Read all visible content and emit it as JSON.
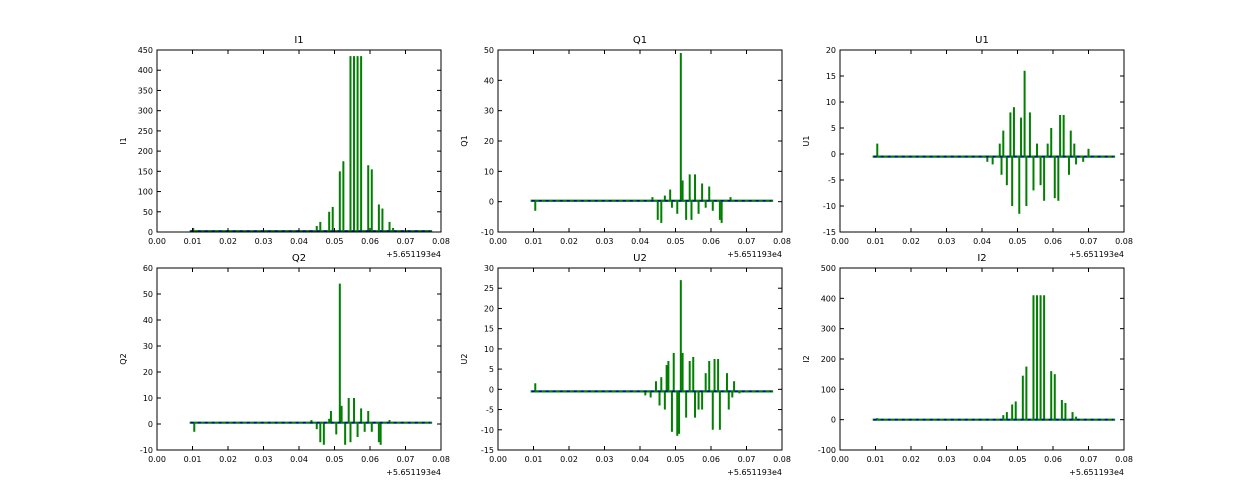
{
  "colors": {
    "green": "#007f00",
    "blue": "#0000cc",
    "axis": "#000000",
    "background": "#ffffff"
  },
  "chart_data": [
    {
      "type": "line",
      "title": "I1",
      "xlabel": "",
      "ylabel": "I1",
      "xlim": [
        0.0,
        0.08
      ],
      "ylim": [
        0,
        450
      ],
      "xticks": [
        "0.00",
        "0.01",
        "0.02",
        "0.03",
        "0.04",
        "0.05",
        "0.06",
        "0.07",
        "0.08"
      ],
      "yticks": [
        0,
        50,
        100,
        150,
        200,
        250,
        300,
        350,
        400,
        450
      ],
      "offset_label": "+5.651193e4",
      "grid": false,
      "baseline": 2,
      "spikes": [
        [
          0.0102,
          10
        ],
        [
          0.043,
          5
        ],
        [
          0.045,
          15
        ],
        [
          0.046,
          25
        ],
        [
          0.0485,
          50
        ],
        [
          0.0495,
          62
        ],
        [
          0.0515,
          150
        ],
        [
          0.0525,
          175
        ],
        [
          0.0545,
          435
        ],
        [
          0.0555,
          435
        ],
        [
          0.0565,
          435
        ],
        [
          0.0575,
          435
        ],
        [
          0.0595,
          165
        ],
        [
          0.0605,
          155
        ],
        [
          0.0625,
          68
        ],
        [
          0.0635,
          58
        ],
        [
          0.0655,
          25
        ],
        [
          0.0665,
          10
        ]
      ]
    },
    {
      "type": "line",
      "title": "Q1",
      "xlabel": "",
      "ylabel": "Q1",
      "xlim": [
        0.0,
        0.08
      ],
      "ylim": [
        -10,
        50
      ],
      "xticks": [
        "0.00",
        "0.01",
        "0.02",
        "0.03",
        "0.04",
        "0.05",
        "0.06",
        "0.07",
        "0.08"
      ],
      "yticks": [
        -10,
        0,
        10,
        20,
        30,
        40,
        50
      ],
      "offset_label": "+5.651193e4",
      "grid": false,
      "baseline": 0.3,
      "spikes": [
        [
          0.0105,
          -3
        ],
        [
          0.0435,
          1.5
        ],
        [
          0.045,
          -6
        ],
        [
          0.046,
          -7
        ],
        [
          0.047,
          2
        ],
        [
          0.0485,
          4
        ],
        [
          0.049,
          -2
        ],
        [
          0.0505,
          -4
        ],
        [
          0.0515,
          49
        ],
        [
          0.052,
          7
        ],
        [
          0.053,
          -6
        ],
        [
          0.054,
          9
        ],
        [
          0.0545,
          -6
        ],
        [
          0.0555,
          9
        ],
        [
          0.0565,
          -4
        ],
        [
          0.0575,
          6
        ],
        [
          0.0585,
          -2
        ],
        [
          0.0595,
          5
        ],
        [
          0.0605,
          -3
        ],
        [
          0.0625,
          -6
        ],
        [
          0.063,
          -7
        ],
        [
          0.0655,
          1.5
        ]
      ]
    },
    {
      "type": "line",
      "title": "U1",
      "xlabel": "",
      "ylabel": "U1",
      "xlim": [
        0.0,
        0.08
      ],
      "ylim": [
        -15,
        20
      ],
      "xticks": [
        "0.00",
        "0.01",
        "0.02",
        "0.03",
        "0.04",
        "0.05",
        "0.06",
        "0.07",
        "0.08"
      ],
      "yticks": [
        -15,
        -10,
        -5,
        0,
        5,
        10,
        15,
        20
      ],
      "offset_label": "+5.651193e4",
      "grid": false,
      "baseline": -0.5,
      "spikes": [
        [
          0.0105,
          2
        ],
        [
          0.0415,
          -1.5
        ],
        [
          0.043,
          -2
        ],
        [
          0.045,
          2
        ],
        [
          0.0455,
          -4
        ],
        [
          0.046,
          4.5
        ],
        [
          0.047,
          -6
        ],
        [
          0.048,
          8
        ],
        [
          0.0485,
          -10
        ],
        [
          0.049,
          9
        ],
        [
          0.0505,
          -11.5
        ],
        [
          0.051,
          7
        ],
        [
          0.052,
          16
        ],
        [
          0.0525,
          -10
        ],
        [
          0.0535,
          8
        ],
        [
          0.0545,
          -7
        ],
        [
          0.0555,
          2
        ],
        [
          0.0565,
          -6
        ],
        [
          0.0575,
          -9
        ],
        [
          0.0585,
          2
        ],
        [
          0.0595,
          5
        ],
        [
          0.0605,
          -8.5
        ],
        [
          0.0615,
          -9
        ],
        [
          0.062,
          7.5
        ],
        [
          0.063,
          7.5
        ],
        [
          0.0645,
          -4
        ],
        [
          0.065,
          4.5
        ],
        [
          0.066,
          2
        ],
        [
          0.0665,
          -2
        ],
        [
          0.0685,
          -1.5
        ],
        [
          0.07,
          1
        ]
      ]
    },
    {
      "type": "line",
      "title": "Q2",
      "xlabel": "",
      "ylabel": "Q2",
      "xlim": [
        0.0,
        0.08
      ],
      "ylim": [
        -10,
        60
      ],
      "xticks": [
        "0.00",
        "0.01",
        "0.02",
        "0.03",
        "0.04",
        "0.05",
        "0.06",
        "0.07",
        "0.08"
      ],
      "yticks": [
        -10,
        0,
        10,
        20,
        30,
        40,
        50,
        60
      ],
      "offset_label": "+5.651193e4",
      "grid": false,
      "baseline": 0.5,
      "spikes": [
        [
          0.0105,
          -3
        ],
        [
          0.0435,
          1.5
        ],
        [
          0.045,
          -2
        ],
        [
          0.046,
          -7
        ],
        [
          0.047,
          -8
        ],
        [
          0.0485,
          2
        ],
        [
          0.049,
          5
        ],
        [
          0.0505,
          -4
        ],
        [
          0.0515,
          54
        ],
        [
          0.052,
          7
        ],
        [
          0.053,
          -8
        ],
        [
          0.054,
          10
        ],
        [
          0.0545,
          -7
        ],
        [
          0.0555,
          10
        ],
        [
          0.0565,
          -5
        ],
        [
          0.0575,
          6
        ],
        [
          0.0585,
          -3
        ],
        [
          0.0595,
          5
        ],
        [
          0.0605,
          -3
        ],
        [
          0.0625,
          -7
        ],
        [
          0.063,
          -8
        ],
        [
          0.0655,
          1.5
        ]
      ]
    },
    {
      "type": "line",
      "title": "U2",
      "xlabel": "",
      "ylabel": "U2",
      "xlim": [
        0.0,
        0.08
      ],
      "ylim": [
        -15,
        30
      ],
      "xticks": [
        "0.00",
        "0.01",
        "0.02",
        "0.03",
        "0.04",
        "0.05",
        "0.06",
        "0.07",
        "0.08"
      ],
      "yticks": [
        -15,
        -10,
        -5,
        0,
        5,
        10,
        15,
        20,
        25,
        30
      ],
      "offset_label": "+5.651193e4",
      "grid": false,
      "baseline": -0.5,
      "spikes": [
        [
          0.0105,
          1.5
        ],
        [
          0.0415,
          -1.5
        ],
        [
          0.043,
          -2
        ],
        [
          0.0445,
          2
        ],
        [
          0.0455,
          -4
        ],
        [
          0.046,
          3
        ],
        [
          0.047,
          -5
        ],
        [
          0.0475,
          6
        ],
        [
          0.048,
          7
        ],
        [
          0.049,
          -10.5
        ],
        [
          0.0495,
          9
        ],
        [
          0.0505,
          -11.5
        ],
        [
          0.051,
          -11
        ],
        [
          0.0515,
          27
        ],
        [
          0.052,
          9
        ],
        [
          0.053,
          -7
        ],
        [
          0.054,
          7
        ],
        [
          0.055,
          8
        ],
        [
          0.0555,
          -7
        ],
        [
          0.0565,
          -5
        ],
        [
          0.0575,
          -5
        ],
        [
          0.0585,
          4
        ],
        [
          0.0595,
          7
        ],
        [
          0.0605,
          -10
        ],
        [
          0.061,
          7.5
        ],
        [
          0.062,
          7.5
        ],
        [
          0.0625,
          -10
        ],
        [
          0.0645,
          4
        ],
        [
          0.065,
          -5
        ],
        [
          0.066,
          -2
        ],
        [
          0.0665,
          2
        ],
        [
          0.068,
          -1
        ]
      ]
    },
    {
      "type": "line",
      "title": "I2",
      "xlabel": "",
      "ylabel": "I2",
      "xlim": [
        0.0,
        0.08
      ],
      "ylim": [
        -100,
        500
      ],
      "xticks": [
        "0.00",
        "0.01",
        "0.02",
        "0.03",
        "0.04",
        "0.05",
        "0.06",
        "0.07",
        "0.08"
      ],
      "yticks": [
        -100,
        0,
        100,
        200,
        300,
        400,
        500
      ],
      "offset_label": "+5.651193e4",
      "grid": false,
      "baseline": 0,
      "spikes": [
        [
          0.0105,
          5
        ],
        [
          0.046,
          15
        ],
        [
          0.047,
          25
        ],
        [
          0.0485,
          50
        ],
        [
          0.0495,
          60
        ],
        [
          0.0515,
          145
        ],
        [
          0.0525,
          175
        ],
        [
          0.0545,
          410
        ],
        [
          0.0555,
          410
        ],
        [
          0.0565,
          410
        ],
        [
          0.0575,
          410
        ],
        [
          0.0595,
          160
        ],
        [
          0.0605,
          150
        ],
        [
          0.0625,
          65
        ],
        [
          0.0635,
          55
        ],
        [
          0.0655,
          25
        ],
        [
          0.0665,
          10
        ]
      ]
    }
  ]
}
